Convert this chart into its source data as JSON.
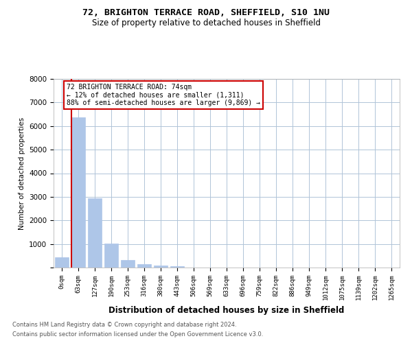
{
  "title1": "72, BRIGHTON TERRACE ROAD, SHEFFIELD, S10 1NU",
  "title2": "Size of property relative to detached houses in Sheffield",
  "xlabel": "Distribution of detached houses by size in Sheffield",
  "ylabel": "Number of detached properties",
  "bar_labels": [
    "0sqm",
    "63sqm",
    "127sqm",
    "190sqm",
    "253sqm",
    "316sqm",
    "380sqm",
    "443sqm",
    "506sqm",
    "569sqm",
    "633sqm",
    "696sqm",
    "759sqm",
    "822sqm",
    "886sqm",
    "949sqm",
    "1012sqm",
    "1075sqm",
    "1139sqm",
    "1202sqm",
    "1265sqm"
  ],
  "bar_values": [
    450,
    6380,
    2950,
    1010,
    330,
    150,
    90,
    50,
    0,
    0,
    0,
    0,
    0,
    0,
    0,
    0,
    0,
    0,
    0,
    0,
    0
  ],
  "bar_color": "#aec6e8",
  "annotation_title": "72 BRIGHTON TERRACE ROAD: 74sqm",
  "annotation_line1": "← 12% of detached houses are smaller (1,311)",
  "annotation_line2": "88% of semi-detached houses are larger (9,869) →",
  "footer1": "Contains HM Land Registry data © Crown copyright and database right 2024.",
  "footer2": "Contains public sector information licensed under the Open Government Licence v3.0.",
  "ylim": [
    0,
    8000
  ],
  "yticks": [
    0,
    1000,
    2000,
    3000,
    4000,
    5000,
    6000,
    7000,
    8000
  ],
  "annotation_box_color": "#cc0000",
  "property_line_color": "#cc0000",
  "background_color": "#ffffff",
  "grid_color": "#b0c4d8"
}
